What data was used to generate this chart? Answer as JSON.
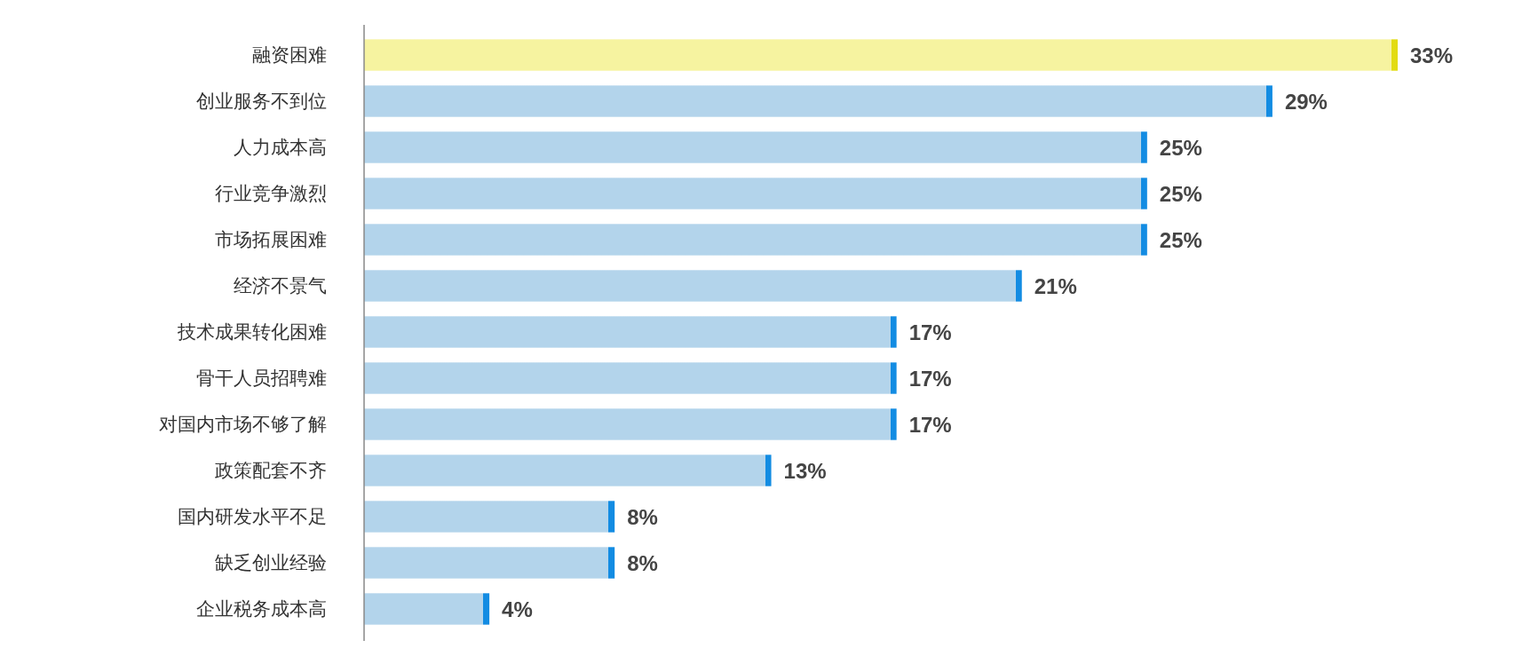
{
  "chart_data": {
    "type": "bar",
    "orientation": "horizontal",
    "categories": [
      "融资困难",
      "创业服务不到位",
      "人力成本高",
      "行业竞争激烈",
      "市场拓展困难",
      "经济不景气",
      "技术成果转化困难",
      "骨干人员招聘难",
      "对国内市场不够了解",
      "政策配套不齐",
      "国内研发水平不足",
      "缺乏创业经验",
      "企业税务成本高"
    ],
    "values": [
      33,
      29,
      25,
      25,
      25,
      21,
      17,
      17,
      17,
      13,
      8,
      8,
      4
    ],
    "value_labels": [
      "33%",
      "29%",
      "25%",
      "25%",
      "25%",
      "21%",
      "17%",
      "17%",
      "17%",
      "13%",
      "8%",
      "8%",
      "4%"
    ],
    "colors": [
      "#f6f3a0",
      "#b3d4eb",
      "#b3d4eb",
      "#b3d4eb",
      "#b3d4eb",
      "#b3d4eb",
      "#b3d4eb",
      "#b3d4eb",
      "#b3d4eb",
      "#b3d4eb",
      "#b3d4eb",
      "#b3d4eb",
      "#b3d4eb"
    ]
  }
}
